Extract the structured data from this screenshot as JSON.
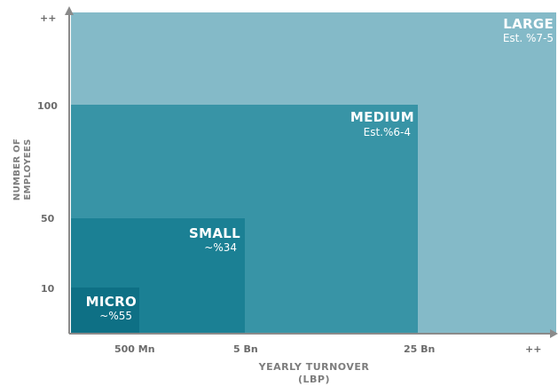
{
  "segments": {
    "large": {
      "name": "LARGE",
      "share": "Est. %7-5",
      "color": "#84bac8"
    },
    "medium": {
      "name": "MEDIUM",
      "share": "Est.%6-4",
      "color": "#3894a6"
    },
    "small": {
      "name": "SMALL",
      "share": "~%34",
      "color": "#1b8094"
    },
    "micro": {
      "name": "MICRO",
      "share": "~%55",
      "color": "#0e7085"
    }
  },
  "x_axis": {
    "title_line1": "YEARLY TURNOVER",
    "title_line2": "(LBP)",
    "ticks": [
      "500 Mn",
      "5 Bn",
      "25 Bn",
      "++"
    ]
  },
  "y_axis": {
    "title_line1": "NUMBER OF",
    "title_line2": "EMPLOYEES",
    "ticks": [
      "++",
      "100",
      "50",
      "10"
    ]
  },
  "colors": {
    "axis": "#8a8a8a",
    "tick_text": "#6b6b6b"
  }
}
